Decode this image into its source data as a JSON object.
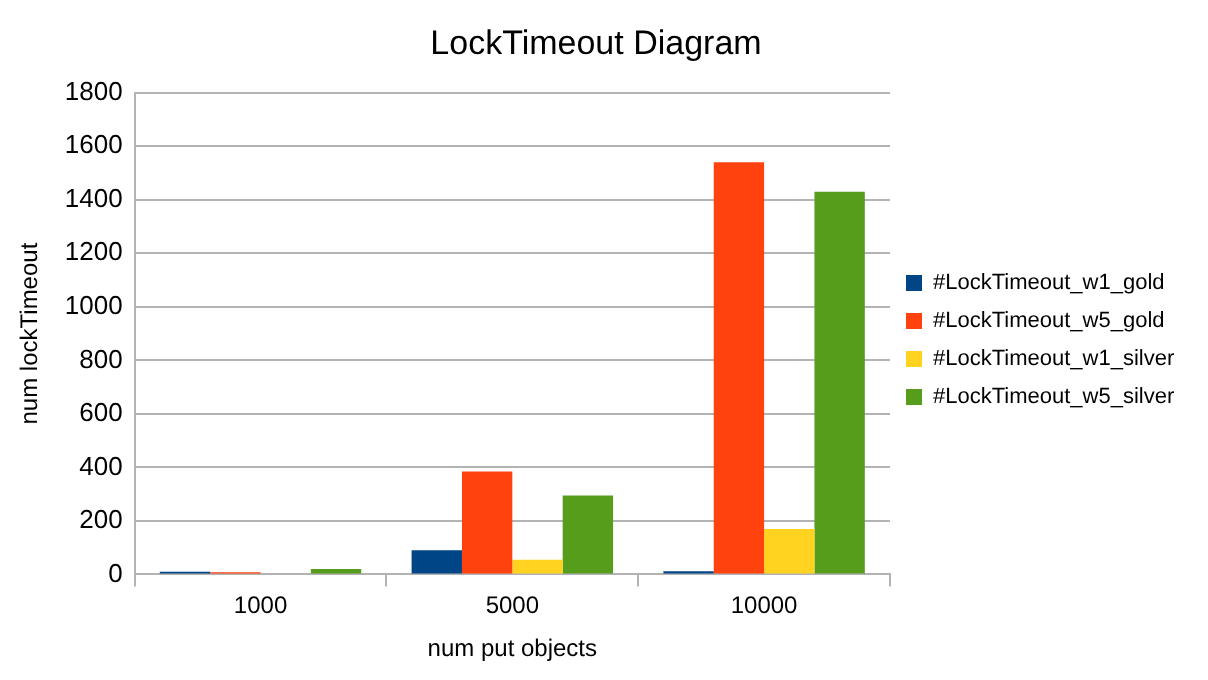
{
  "chart_data": {
    "type": "bar",
    "title": "LockTimeout Diagram",
    "xlabel": "num put objects",
    "ylabel": "num lockTimeout",
    "categories": [
      "1000",
      "5000",
      "10000"
    ],
    "series": [
      {
        "name": "#LockTimeout_w1_gold",
        "color": "#004586",
        "values": [
          10,
          90,
          12
        ]
      },
      {
        "name": "#LockTimeout_w5_gold",
        "color": "#ff420e",
        "values": [
          8,
          385,
          1540
        ]
      },
      {
        "name": "#LockTimeout_w1_silver",
        "color": "#ffd320",
        "values": [
          0,
          55,
          170
        ]
      },
      {
        "name": "#LockTimeout_w5_silver",
        "color": "#579d1c",
        "values": [
          20,
          295,
          1430
        ]
      }
    ],
    "ylim": [
      0,
      1800
    ],
    "yticks": [
      0,
      200,
      400,
      600,
      800,
      1000,
      1200,
      1400,
      1600,
      1800
    ],
    "grid": "y",
    "legend": "right"
  }
}
